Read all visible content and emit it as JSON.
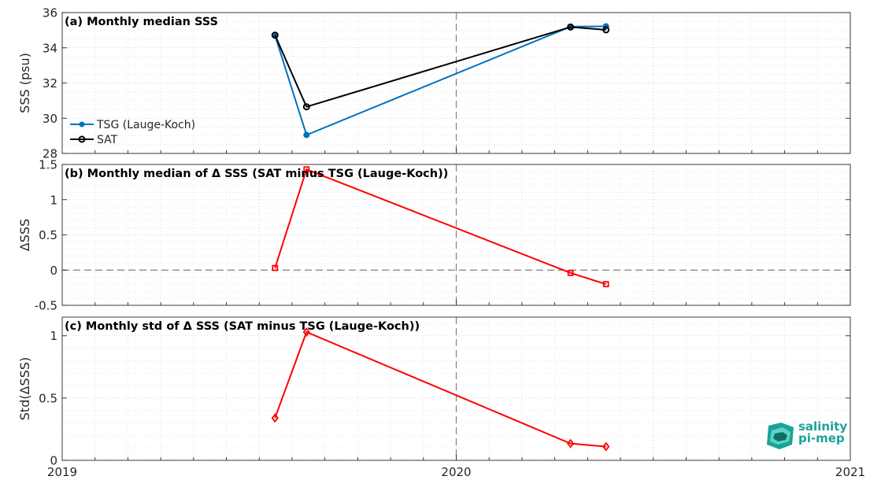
{
  "chart_data": [
    {
      "type": "line",
      "title": "(a) Monthly median SSS",
      "ylabel": "SSS (psu)",
      "xlim": [
        2019.0,
        2021.0
      ],
      "ylim": [
        28,
        36
      ],
      "yticks": [
        28,
        30,
        32,
        34,
        36
      ],
      "vline_x": 2020.0,
      "grid": true,
      "legend_position": "left",
      "series": [
        {
          "name": "TSG (Lauge-Koch)",
          "color": "#0072BD",
          "marker": "dot",
          "x": [
            2019.54,
            2019.62,
            2020.29,
            2020.38
          ],
          "values": [
            34.7,
            29.05,
            35.2,
            35.22
          ]
        },
        {
          "name": "SAT",
          "color": "#000000",
          "marker": "circle",
          "x": [
            2019.54,
            2019.62,
            2020.29,
            2020.38
          ],
          "values": [
            34.72,
            30.65,
            35.18,
            35.02
          ]
        }
      ]
    },
    {
      "type": "line",
      "title": "(b) Monthly median of Δ SSS (SAT minus TSG (Lauge-Koch))",
      "ylabel": "ΔSSS",
      "xlim": [
        2019.0,
        2021.0
      ],
      "ylim": [
        -0.5,
        1.5
      ],
      "yticks": [
        -0.5,
        0,
        0.5,
        1,
        1.5
      ],
      "ytick_labels": [
        "-0.5",
        "0",
        "0.5",
        "1",
        "1.5"
      ],
      "hline_y": 0,
      "vline_x": 2020.0,
      "grid": true,
      "series": [
        {
          "color": "#FF0000",
          "marker": "square",
          "x": [
            2019.54,
            2019.62,
            2020.29,
            2020.38
          ],
          "values": [
            0.03,
            1.43,
            -0.04,
            -0.2
          ]
        }
      ]
    },
    {
      "type": "line",
      "title": "(c) Monthly std of Δ SSS (SAT minus TSG (Lauge-Koch))",
      "ylabel": "Std(ΔSSS)",
      "xlim": [
        2019.0,
        2021.0
      ],
      "ylim": [
        0,
        1.15
      ],
      "yticks": [
        0,
        0.5,
        1
      ],
      "ytick_labels": [
        "0",
        "0.5",
        "1"
      ],
      "vline_x": 2020.0,
      "grid": true,
      "xticks": [
        2019,
        2020,
        2021
      ],
      "xtick_labels": [
        "2019",
        "2020",
        "2021"
      ],
      "series": [
        {
          "color": "#FF0000",
          "marker": "diamond",
          "x": [
            2019.54,
            2019.62,
            2020.29,
            2020.38
          ],
          "values": [
            0.34,
            1.03,
            0.135,
            0.11
          ]
        }
      ]
    }
  ],
  "logo": {
    "line1": "salinity",
    "line2": "pi-mep"
  }
}
